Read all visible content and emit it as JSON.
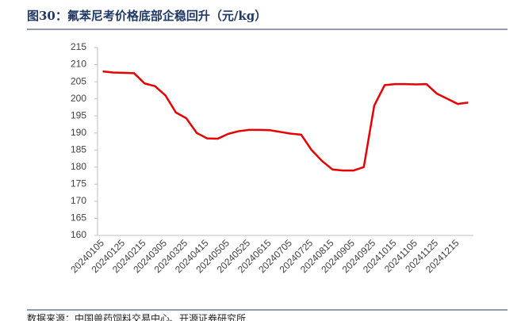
{
  "chart_data": {
    "type": "line",
    "title": "图30：氟苯尼考价格底部企稳回升（元/kg）",
    "source": "数据来源：中国兽药饲料交易中心、开源证券研究所",
    "categories": [
      "20240105",
      null,
      "20240125",
      null,
      "20240215",
      null,
      "20240305",
      null,
      "20240325",
      null,
      "20240415",
      null,
      "20240505",
      null,
      "20240525",
      null,
      "20240615",
      null,
      "20240705",
      null,
      "20240725",
      null,
      "20240815",
      null,
      "20240905",
      null,
      "20240925",
      null,
      "20241015",
      null,
      "20241105",
      null,
      "20241125",
      null,
      "20241215",
      null
    ],
    "series": [
      {
        "color": "#e60000",
        "values": [
          208,
          207.7,
          207.6,
          207.5,
          204.5,
          203.7,
          201,
          196,
          194.3,
          190,
          188.4,
          188.3,
          189.7,
          190.5,
          190.9,
          190.9,
          190.8,
          190.3,
          189.8,
          189.5,
          185,
          181.8,
          179.3,
          179,
          179,
          180,
          198,
          204,
          204.3,
          204.3,
          204.2,
          204.3,
          201.5,
          200,
          198.5,
          198.9
        ]
      }
    ],
    "ylim": [
      160,
      215
    ],
    "yticks": [
      160,
      165,
      170,
      175,
      180,
      185,
      190,
      195,
      200,
      205,
      210,
      215
    ],
    "grid": false
  }
}
